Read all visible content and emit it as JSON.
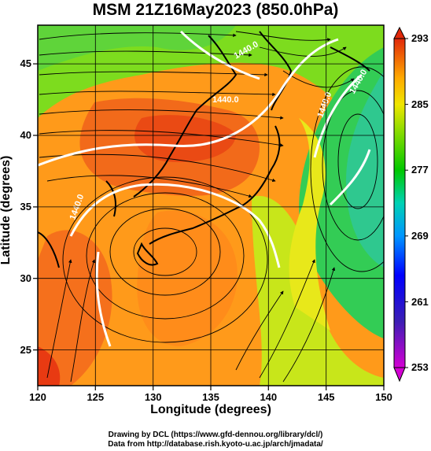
{
  "title": "MSM 21Z16May2023 (850.0hPa)",
  "axes": {
    "xlabel": "Longitude (degrees)",
    "ylabel": "Latitude  (degrees)",
    "xlim": [
      120,
      150
    ],
    "ylim": [
      22.4,
      47.6
    ],
    "xticks": [
      "120",
      "125",
      "130",
      "135",
      "140",
      "145",
      "150"
    ],
    "yticks": [
      "25",
      "30",
      "35",
      "40",
      "45"
    ]
  },
  "colorbar": {
    "labels": [
      "293",
      "285",
      "277",
      "269",
      "261",
      "253"
    ],
    "min": 253,
    "max": 293
  },
  "contour_labels": [
    "1440.0",
    "1440.0",
    "1440.0",
    "1440.0",
    "1440.0"
  ],
  "credits": {
    "line1": "Drawing by DCL (https://www.gfd-dennou.org/library/dcl/)",
    "line2": "Data from http://database.rish.kyoto-u.ac.jp/arch/jmadata/"
  }
}
